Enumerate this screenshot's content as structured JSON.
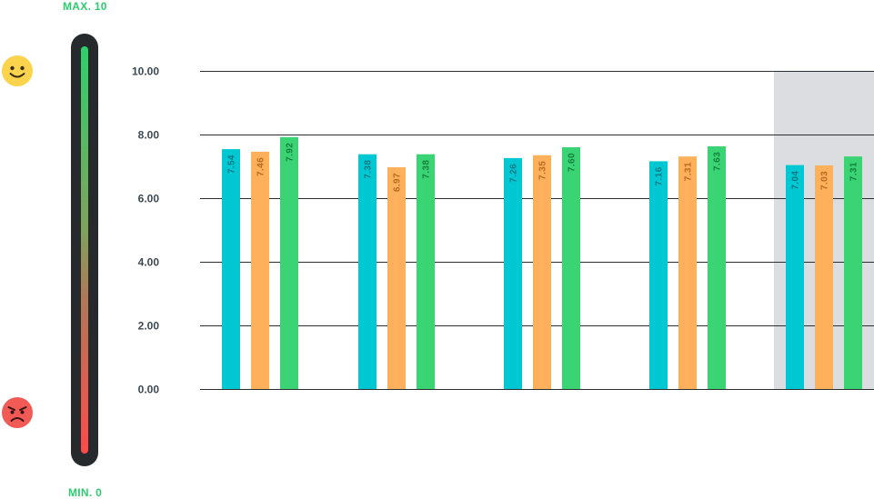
{
  "scale": {
    "max_label": "MAX. 10",
    "min_label": "MIN. 0",
    "top_icon": "smiley-face-icon",
    "bottom_icon": "angry-face-icon",
    "gradient_colors": [
      "#2ed06b",
      "#ff4a4a"
    ]
  },
  "colors": {
    "series": [
      "#00c8d2",
      "#ffb05a",
      "#3ad474"
    ],
    "label_text": [
      "#0a7a86",
      "#b86a20",
      "#15803d"
    ],
    "highlight_band": "#dcdde0",
    "gridline": "#2b2f33",
    "gauge_track": "#262a2d"
  },
  "chart_data": {
    "type": "bar",
    "ylim": [
      0,
      10
    ],
    "yticks": [
      "0.00",
      "2.00",
      "4.00",
      "6.00",
      "8.00",
      "10.00"
    ],
    "grid": true,
    "highlighted_group": 4,
    "groups": [
      [
        7.54,
        7.46,
        7.92
      ],
      [
        7.38,
        6.97,
        7.38
      ],
      [
        7.26,
        7.35,
        7.6
      ],
      [
        7.16,
        7.31,
        7.63
      ],
      [
        7.04,
        7.03,
        7.31
      ]
    ],
    "value_labels": [
      [
        "7.54",
        "7.46",
        "7.92"
      ],
      [
        "7.38",
        "6.97",
        "7.38"
      ],
      [
        "7.26",
        "7.35",
        "7.60"
      ],
      [
        "7.16",
        "7.31",
        "7.63"
      ],
      [
        "7.04",
        "7.03",
        "7.31"
      ]
    ]
  }
}
